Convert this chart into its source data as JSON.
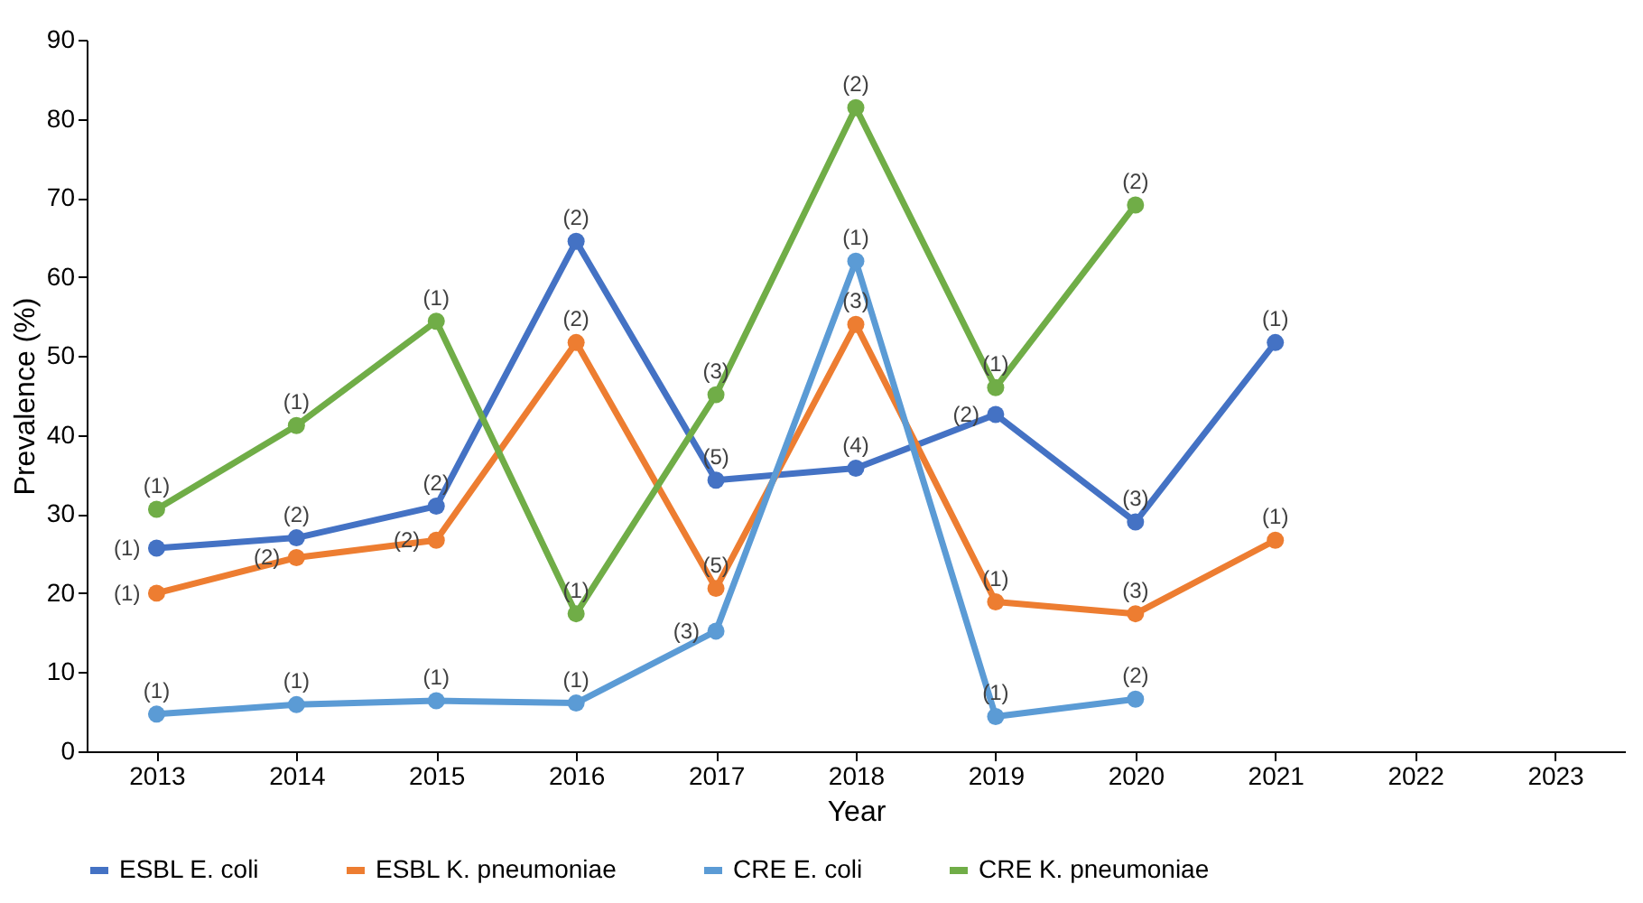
{
  "chart_data": {
    "type": "line",
    "xlabel": "Year",
    "ylabel": "Prevalence (%)",
    "categories": [
      "2013",
      "2014",
      "2015",
      "2016",
      "2017",
      "2018",
      "2019",
      "2020",
      "2021",
      "2022",
      "2023"
    ],
    "ylim": [
      0,
      90
    ],
    "yticks": [
      0,
      10,
      20,
      30,
      40,
      50,
      60,
      70,
      80,
      90
    ],
    "grid": false,
    "legend": "bottom",
    "marker": "circle",
    "line_style": "solid",
    "series": [
      {
        "name": "ESBL E. coli",
        "color": "#4472c4",
        "values": [
          25.7,
          27,
          31,
          64.5,
          34.3,
          35.8,
          42.6,
          29,
          51.7,
          null,
          null
        ]
      },
      {
        "name": "ESBL K. pneumoniae",
        "color": "#ed7d31",
        "values": [
          20,
          24.5,
          26.7,
          51.7,
          20.6,
          54,
          18.9,
          17.4,
          26.7,
          null,
          null
        ]
      },
      {
        "name": "CRE E. coli",
        "color": "#5b9bd5",
        "values": [
          4.7,
          5.9,
          6.4,
          6.1,
          15.2,
          62,
          4.4,
          6.6,
          null,
          null,
          null
        ]
      },
      {
        "name": "CRE K. pneumoniae",
        "color": "#70ad47",
        "values": [
          30.6,
          41.2,
          54.4,
          17.4,
          45.1,
          81.4,
          46,
          69.1,
          null,
          null,
          null
        ]
      }
    ],
    "annotations": [
      {
        "text": "(1)",
        "x": "2013",
        "y": 25.7
      },
      {
        "text": "(2)",
        "x": "2014",
        "y": 27
      },
      {
        "text": "(2)",
        "x": "2015",
        "y": 31
      },
      {
        "text": "(2)",
        "x": "2016",
        "y": 64.5
      },
      {
        "text": "(5)",
        "x": "2017",
        "y": 34.3
      },
      {
        "text": "(4)",
        "x": "2018",
        "y": 35.8
      },
      {
        "text": "(2)",
        "x": "2019",
        "y": 42.6
      },
      {
        "text": "(3)",
        "x": "2020",
        "y": 29
      },
      {
        "text": "(1)",
        "x": "2021",
        "y": 51.7
      },
      {
        "text": "(1)",
        "x": "2013",
        "y": 20
      },
      {
        "text": "(2)",
        "x": "2014",
        "y": 24.5
      },
      {
        "text": "(2)",
        "x": "2015",
        "y": 26.7
      },
      {
        "text": "(2)",
        "x": "2016",
        "y": 51.7
      },
      {
        "text": "(5)",
        "x": "2017",
        "y": 20.6
      },
      {
        "text": "(3)",
        "x": "2018",
        "y": 54
      },
      {
        "text": "(1)",
        "x": "2019",
        "y": 18.9
      },
      {
        "text": "(3)",
        "x": "2020",
        "y": 17.4
      },
      {
        "text": "(1)",
        "x": "2021",
        "y": 26.7
      },
      {
        "text": "(1)",
        "x": "2013",
        "y": 4.7
      },
      {
        "text": "(1)",
        "x": "2014",
        "y": 5.9
      },
      {
        "text": "(1)",
        "x": "2015",
        "y": 6.4
      },
      {
        "text": "(1)",
        "x": "2016",
        "y": 6.1
      },
      {
        "text": "(3)",
        "x": "2017",
        "y": 15.2
      },
      {
        "text": "(1)",
        "x": "2018",
        "y": 62
      },
      {
        "text": "(1)",
        "x": "2019",
        "y": 4.4
      },
      {
        "text": "(2)",
        "x": "2020",
        "y": 6.6
      },
      {
        "text": "(1)",
        "x": "2013",
        "y": 30.6
      },
      {
        "text": "(1)",
        "x": "2014",
        "y": 41.2
      },
      {
        "text": "(1)",
        "x": "2015",
        "y": 54.4
      },
      {
        "text": "(1)",
        "x": "2016",
        "y": 17.4
      },
      {
        "text": "(3)",
        "x": "2017",
        "y": 45.1
      },
      {
        "text": "(2)",
        "x": "2018",
        "y": 81.4
      },
      {
        "text": "(1)",
        "x": "2019",
        "y": 46
      },
      {
        "text": "(2)",
        "x": "2020",
        "y": 69.1
      }
    ]
  }
}
